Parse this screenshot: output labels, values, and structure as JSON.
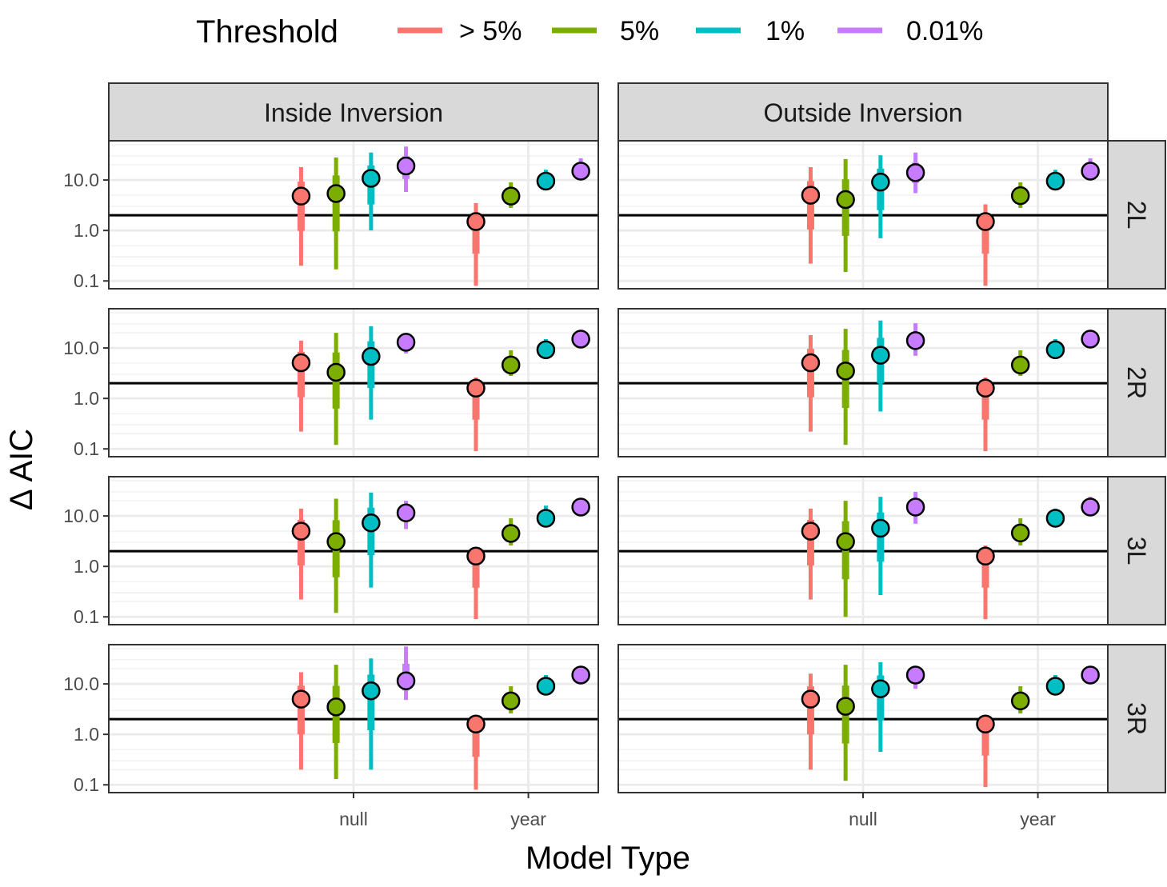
{
  "chart_data": {
    "type": "scatter",
    "subtype": "faceted point-range (log y axis)",
    "legend": {
      "title": "Threshold",
      "placement": "top",
      "entries": [
        {
          "label": "> 5%",
          "color": "#F8766D"
        },
        {
          "label": "5%",
          "color": "#7CAE00"
        },
        {
          "label": "1%",
          "color": "#00BFC4"
        },
        {
          "label": "0.01%",
          "color": "#C77CFF"
        }
      ]
    },
    "xlabel": "Model Type",
    "ylabel": "Δ AIC",
    "x_categories": [
      "null",
      "year"
    ],
    "y_scale": "log10",
    "ylim": [
      0.07,
      60
    ],
    "y_ticks": [
      0.1,
      1.0,
      10.0
    ],
    "y_tick_labels": [
      "0.1",
      "1.0",
      "10.0"
    ],
    "reference_line_y": 2,
    "grid": true,
    "columns": [
      "Inside Inversion",
      "Outside Inversion"
    ],
    "rows": [
      "2L",
      "2R",
      "3L",
      "3R"
    ],
    "panels": [
      {
        "column": "Inside Inversion",
        "row": "2L",
        "null": [
          {
            "y": 4.8,
            "low": 0.2,
            "high": 18
          },
          {
            "y": 5.4,
            "low": 0.17,
            "high": 28
          },
          {
            "y": 10.8,
            "low": 1.0,
            "high": 35
          },
          {
            "y": 19,
            "low": 5.8,
            "high": 46
          }
        ],
        "year": [
          {
            "y": 1.5,
            "low": 0.08,
            "high": 3.5
          },
          {
            "y": 4.8,
            "low": 2.8,
            "high": 9
          },
          {
            "y": 9.5,
            "low": 7.5,
            "high": 16
          },
          {
            "y": 15,
            "low": 11,
            "high": 27
          }
        ]
      },
      {
        "column": "Outside Inversion",
        "row": "2L",
        "null": [
          {
            "y": 5.0,
            "low": 0.22,
            "high": 18
          },
          {
            "y": 4.1,
            "low": 0.15,
            "high": 26
          },
          {
            "y": 9.1,
            "low": 0.7,
            "high": 31
          },
          {
            "y": 14,
            "low": 5.5,
            "high": 35
          }
        ],
        "year": [
          {
            "y": 1.5,
            "low": 0.08,
            "high": 3.3
          },
          {
            "y": 4.9,
            "low": 2.8,
            "high": 9
          },
          {
            "y": 9.5,
            "low": 7.5,
            "high": 16
          },
          {
            "y": 15,
            "low": 11,
            "high": 27
          }
        ]
      },
      {
        "column": "Inside Inversion",
        "row": "2R",
        "null": [
          {
            "y": 5.1,
            "low": 0.22,
            "high": 14
          },
          {
            "y": 3.3,
            "low": 0.12,
            "high": 20
          },
          {
            "y": 6.8,
            "low": 0.38,
            "high": 27
          },
          {
            "y": 13,
            "low": 7.8,
            "high": 19
          }
        ],
        "year": [
          {
            "y": 1.6,
            "low": 0.09,
            "high": 2.6
          },
          {
            "y": 4.6,
            "low": 2.8,
            "high": 9
          },
          {
            "y": 9.2,
            "low": 7.5,
            "high": 15
          },
          {
            "y": 15,
            "low": 11,
            "high": 23
          }
        ]
      },
      {
        "column": "Outside Inversion",
        "row": "2R",
        "null": [
          {
            "y": 5.1,
            "low": 0.22,
            "high": 18
          },
          {
            "y": 3.5,
            "low": 0.12,
            "high": 24
          },
          {
            "y": 7.2,
            "low": 0.55,
            "high": 35
          },
          {
            "y": 14,
            "low": 7,
            "high": 31
          }
        ],
        "year": [
          {
            "y": 1.6,
            "low": 0.09,
            "high": 2.6
          },
          {
            "y": 4.6,
            "low": 2.8,
            "high": 9
          },
          {
            "y": 9.2,
            "low": 7.5,
            "high": 15
          },
          {
            "y": 15,
            "low": 11,
            "high": 23
          }
        ]
      },
      {
        "column": "Inside Inversion",
        "row": "3L",
        "null": [
          {
            "y": 5.0,
            "low": 0.22,
            "high": 14
          },
          {
            "y": 3.1,
            "low": 0.12,
            "high": 22
          },
          {
            "y": 7.3,
            "low": 0.38,
            "high": 29
          },
          {
            "y": 11.5,
            "low": 5.5,
            "high": 20
          }
        ],
        "year": [
          {
            "y": 1.6,
            "low": 0.09,
            "high": 2.2
          },
          {
            "y": 4.5,
            "low": 2.6,
            "high": 9
          },
          {
            "y": 9.0,
            "low": 7.0,
            "high": 16
          },
          {
            "y": 15,
            "low": 11,
            "high": 22
          }
        ]
      },
      {
        "column": "Outside Inversion",
        "row": "3L",
        "null": [
          {
            "y": 5.0,
            "low": 0.22,
            "high": 14
          },
          {
            "y": 3.1,
            "low": 0.1,
            "high": 20
          },
          {
            "y": 5.7,
            "low": 0.27,
            "high": 24
          },
          {
            "y": 15,
            "low": 7,
            "high": 30
          }
        ],
        "year": [
          {
            "y": 1.6,
            "low": 0.09,
            "high": 2.6
          },
          {
            "y": 4.6,
            "low": 2.6,
            "high": 9
          },
          {
            "y": 9.0,
            "low": 7.5,
            "high": 14
          },
          {
            "y": 15,
            "low": 11,
            "high": 24
          }
        ]
      },
      {
        "column": "Inside Inversion",
        "row": "3R",
        "null": [
          {
            "y": 5.0,
            "low": 0.2,
            "high": 17
          },
          {
            "y": 3.5,
            "low": 0.13,
            "high": 24
          },
          {
            "y": 7.3,
            "low": 0.2,
            "high": 32
          },
          {
            "y": 11.5,
            "low": 4.8,
            "high": 55
          }
        ],
        "year": [
          {
            "y": 1.6,
            "low": 0.08,
            "high": 2.4
          },
          {
            "y": 4.6,
            "low": 2.6,
            "high": 9
          },
          {
            "y": 9.0,
            "low": 7.5,
            "high": 15
          },
          {
            "y": 15,
            "low": 11,
            "high": 22
          }
        ]
      },
      {
        "column": "Outside Inversion",
        "row": "3R",
        "null": [
          {
            "y": 5.0,
            "low": 0.2,
            "high": 16
          },
          {
            "y": 3.6,
            "low": 0.12,
            "high": 24
          },
          {
            "y": 8.0,
            "low": 0.45,
            "high": 27
          },
          {
            "y": 15,
            "low": 8,
            "high": 22
          }
        ],
        "year": [
          {
            "y": 1.6,
            "low": 0.09,
            "high": 2.2
          },
          {
            "y": 4.6,
            "low": 2.6,
            "high": 9
          },
          {
            "y": 9.0,
            "low": 7.5,
            "high": 15
          },
          {
            "y": 15,
            "low": 11,
            "high": 22
          }
        ]
      }
    ]
  }
}
